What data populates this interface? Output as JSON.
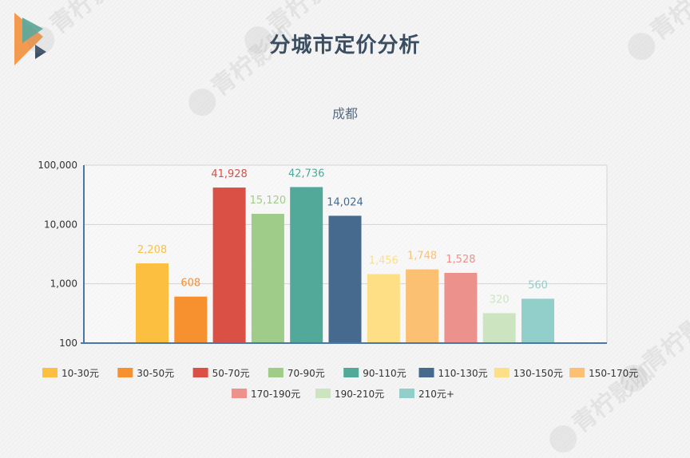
{
  "page": {
    "title": "分城市定价分析"
  },
  "chart_data": {
    "type": "bar",
    "title": "成都",
    "xlabel": "",
    "ylabel": "",
    "yscale": "log",
    "ylim": [
      100,
      100000
    ],
    "yticks": [
      {
        "value": 100,
        "label": "100"
      },
      {
        "value": 1000,
        "label": "1,000"
      },
      {
        "value": 10000,
        "label": "10,000"
      },
      {
        "value": 100000,
        "label": "100,000"
      }
    ],
    "grid": true,
    "legend_position": "bottom",
    "series": [
      {
        "name": "10-30元",
        "value": 2208,
        "label": "2,208",
        "color": "#FDBF40"
      },
      {
        "name": "30-50元",
        "value": 608,
        "label": "608",
        "color": "#F7902F"
      },
      {
        "name": "50-70元",
        "value": 41928,
        "label": "41,928",
        "color": "#DA5044"
      },
      {
        "name": "70-90元",
        "value": 15120,
        "label": "15,120",
        "color": "#A0CC8A"
      },
      {
        "name": "90-110元",
        "value": 42736,
        "label": "42,736",
        "color": "#52A899"
      },
      {
        "name": "110-130元",
        "value": 14024,
        "label": "14,024",
        "color": "#456A8D"
      },
      {
        "name": "130-150元",
        "value": 1456,
        "label": "1,456",
        "color": "#FEDF86"
      },
      {
        "name": "150-170元",
        "value": 1748,
        "label": "1,748",
        "color": "#FCC072"
      },
      {
        "name": "170-190元",
        "value": 1528,
        "label": "1,528",
        "color": "#EC918B"
      },
      {
        "name": "190-210元",
        "value": 320,
        "label": "320",
        "color": "#CCE5C0"
      },
      {
        "name": "210元+",
        "value": 560,
        "label": "560",
        "color": "#93CFCA"
      }
    ]
  },
  "branding": {
    "watermark_text": "青柠影咖",
    "logo_colors": [
      "#F39A4E",
      "#5EA99B",
      "#3E4E66"
    ]
  }
}
